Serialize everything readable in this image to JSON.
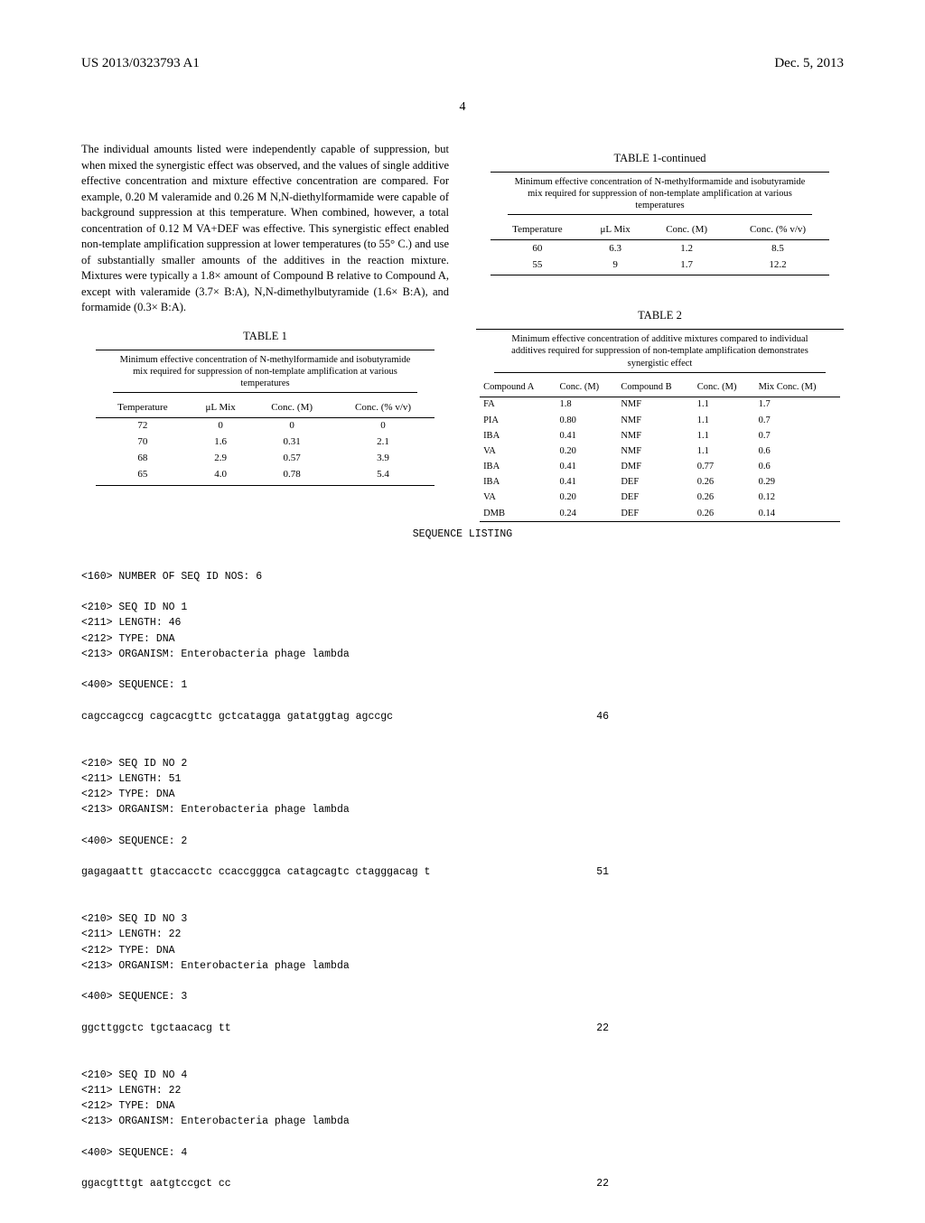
{
  "header": {
    "publication_number": "US 2013/0323793 A1",
    "date": "Dec. 5, 2013"
  },
  "page_number": "4",
  "left_column": {
    "body_text": "The individual amounts listed were independently capable of suppression, but when mixed the synergistic effect was observed, and the values of single additive effective concentration and mixture effective concentration are compared. For example, 0.20 M valeramide and 0.26 M N,N-diethylformamide were capable of background suppression at this temperature. When combined, however, a total concentration of 0.12 M VA+DEF was effective. This synergistic effect enabled non-template amplification suppression at lower temperatures (to 55° C.) and use of substantially smaller amounts of the additives in the reaction mixture. Mixtures were typically a 1.8× amount of Compound B relative to Compound A, except with valeramide (3.7× B:A), N,N-dimethylbutyramide (1.6× B:A), and formamide (0.3× B:A).",
    "table1": {
      "title": "TABLE 1",
      "caption": "Minimum effective concentration of N-methylformamide and isobutyramide mix required for suppression of non-template amplification at various temperatures",
      "columns": [
        "Temperature",
        "μL Mix",
        "Conc. (M)",
        "Conc. (% v/v)"
      ],
      "rows": [
        [
          "72",
          "0",
          "0",
          "0"
        ],
        [
          "70",
          "1.6",
          "0.31",
          "2.1"
        ],
        [
          "68",
          "2.9",
          "0.57",
          "3.9"
        ],
        [
          "65",
          "4.0",
          "0.78",
          "5.4"
        ]
      ]
    }
  },
  "right_column": {
    "table1_cont": {
      "title": "TABLE 1-continued",
      "caption": "Minimum effective concentration of N-methylformamide and isobutyramide mix required for suppression of non-template amplification at various temperatures",
      "columns": [
        "Temperature",
        "μL Mix",
        "Conc. (M)",
        "Conc. (% v/v)"
      ],
      "rows": [
        [
          "60",
          "6.3",
          "1.2",
          "8.5"
        ],
        [
          "55",
          "9",
          "1.7",
          "12.2"
        ]
      ]
    },
    "table2": {
      "title": "TABLE 2",
      "caption": "Minimum effective concentration of additive mixtures compared to individual additives required for suppression of non-template amplification demonstrates synergistic effect",
      "columns": [
        "Compound A",
        "Conc. (M)",
        "Compound B",
        "Conc. (M)",
        "Mix Conc. (M)"
      ],
      "rows": [
        [
          "FA",
          "1.8",
          "NMF",
          "1.1",
          "1.7"
        ],
        [
          "PIA",
          "0.80",
          "NMF",
          "1.1",
          "0.7"
        ],
        [
          "IBA",
          "0.41",
          "NMF",
          "1.1",
          "0.7"
        ],
        [
          "VA",
          "0.20",
          "NMF",
          "1.1",
          "0.6"
        ],
        [
          "IBA",
          "0.41",
          "DMF",
          "0.77",
          "0.6"
        ],
        [
          "IBA",
          "0.41",
          "DEF",
          "0.26",
          "0.29"
        ],
        [
          "VA",
          "0.20",
          "DEF",
          "0.26",
          "0.12"
        ],
        [
          "DMB",
          "0.24",
          "DEF",
          "0.26",
          "0.14"
        ]
      ]
    }
  },
  "sequence_listing": {
    "title": "SEQUENCE LISTING",
    "num_seqs": "<160> NUMBER OF SEQ ID NOS: 6",
    "entries": [
      {
        "header": "<210> SEQ ID NO 1\n<211> LENGTH: 46\n<212> TYPE: DNA\n<213> ORGANISM: Enterobacteria phage lambda",
        "seq_label": "<400> SEQUENCE: 1",
        "sequence": "cagccagccg cagcacgttc gctcatagga gatatggtag agccgc",
        "length": "46"
      },
      {
        "header": "<210> SEQ ID NO 2\n<211> LENGTH: 51\n<212> TYPE: DNA\n<213> ORGANISM: Enterobacteria phage lambda",
        "seq_label": "<400> SEQUENCE: 2",
        "sequence": "gagagaattt gtaccacctc ccaccgggca catagcagtc ctagggacag t",
        "length": "51"
      },
      {
        "header": "<210> SEQ ID NO 3\n<211> LENGTH: 22\n<212> TYPE: DNA\n<213> ORGANISM: Enterobacteria phage lambda",
        "seq_label": "<400> SEQUENCE: 3",
        "sequence": "ggcttggctc tgctaacacg tt",
        "length": "22"
      },
      {
        "header": "<210> SEQ ID NO 4\n<211> LENGTH: 22\n<212> TYPE: DNA\n<213> ORGANISM: Enterobacteria phage lambda",
        "seq_label": "<400> SEQUENCE: 4",
        "sequence": "ggacgtttgt aatgtccgct cc",
        "length": "22"
      }
    ]
  }
}
